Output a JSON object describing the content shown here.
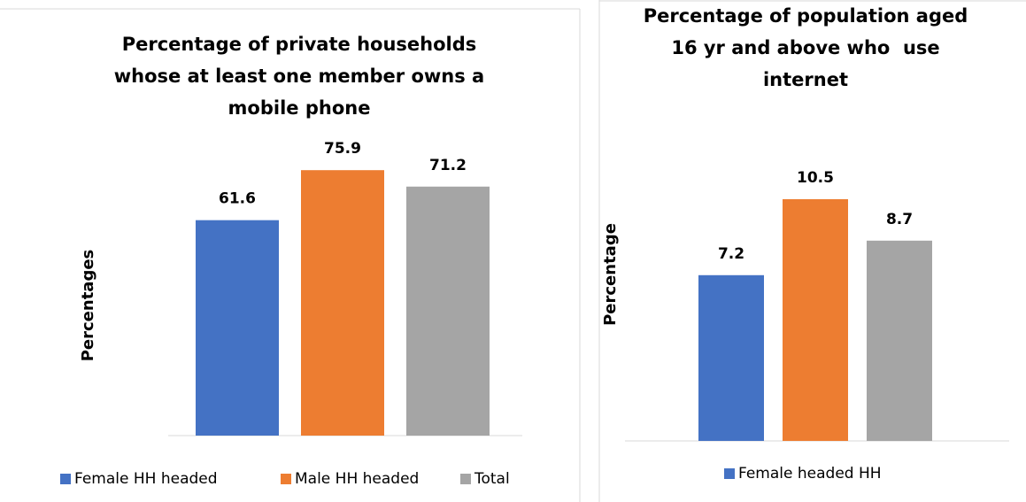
{
  "chart_data": [
    {
      "type": "bar",
      "title": "Percentage of private households whose at least one member owns a mobile phone",
      "y_label": "Percentages",
      "categories": [
        null
      ],
      "series": [
        {
          "name": "Female HH headed",
          "color": "#4472c4",
          "values": [
            61.6
          ]
        },
        {
          "name": "Male HH headed",
          "color": "#ed7d31",
          "values": [
            75.9
          ]
        },
        {
          "name": "Total",
          "color": "#a5a5a5",
          "values": [
            71.2
          ]
        }
      ],
      "ylim": [
        0,
        80
      ]
    },
    {
      "type": "bar",
      "title": "Percentage of population aged 16 yr and above who  use internet",
      "y_label": "Percentage",
      "categories": [
        null
      ],
      "series": [
        {
          "name": "Female headed HH",
          "color": "#4472c4",
          "values": [
            7.2
          ]
        },
        {
          "color": "#ed7d31",
          "values": [
            10.5
          ]
        },
        {
          "color": "#a5a5a5",
          "values": [
            8.7
          ]
        }
      ],
      "ylim": [
        0,
        12
      ]
    }
  ]
}
